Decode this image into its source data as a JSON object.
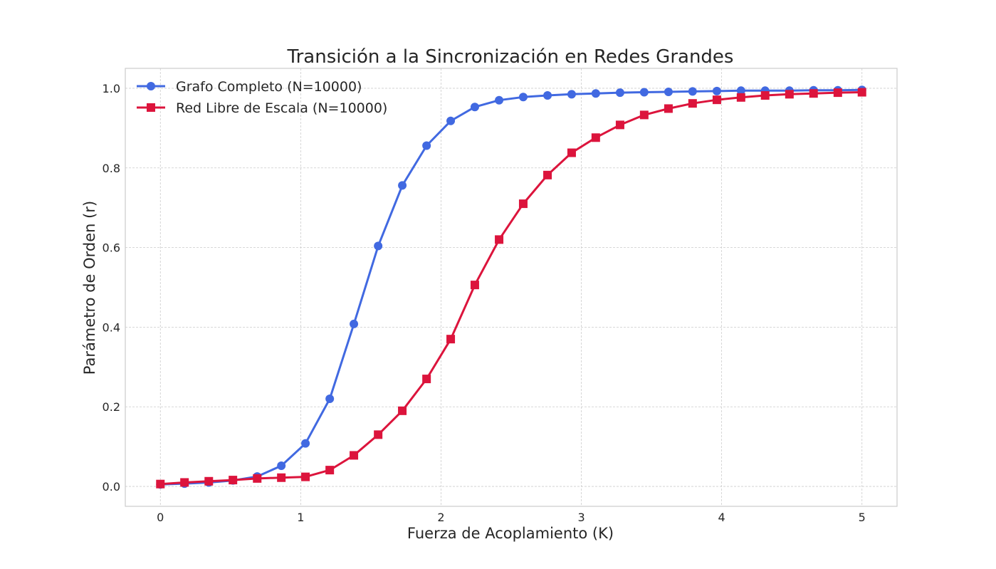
{
  "chart_data": {
    "type": "line",
    "title": "Transición a la Sincronización en Redes Grandes",
    "xlabel": "Fuerza de Acoplamiento (K)",
    "ylabel": "Parámetro de Orden (r)",
    "xlim": [
      -0.25,
      5.25
    ],
    "ylim": [
      -0.05,
      1.05
    ],
    "xticks": [
      0,
      1,
      2,
      3,
      4,
      5
    ],
    "xtick_labels": [
      "0",
      "1",
      "2",
      "3",
      "4",
      "5"
    ],
    "yticks": [
      0.0,
      0.2,
      0.4,
      0.6,
      0.8,
      1.0
    ],
    "ytick_labels": [
      "0.0",
      "0.2",
      "0.4",
      "0.6",
      "0.8",
      "1.0"
    ],
    "grid": true,
    "legend_position": "top-left",
    "x": [
      0.0,
      0.172,
      0.345,
      0.517,
      0.69,
      0.862,
      1.034,
      1.207,
      1.379,
      1.552,
      1.724,
      1.897,
      2.069,
      2.241,
      2.414,
      2.586,
      2.759,
      2.931,
      3.103,
      3.276,
      3.448,
      3.621,
      3.793,
      3.966,
      4.138,
      4.31,
      4.483,
      4.655,
      4.828,
      5.0
    ],
    "series": [
      {
        "name": "Grafo Completo (N=10000)",
        "color": "#4169e1",
        "marker": "circle",
        "values": [
          0.005,
          0.007,
          0.01,
          0.015,
          0.025,
          0.052,
          0.108,
          0.22,
          0.408,
          0.604,
          0.756,
          0.856,
          0.918,
          0.953,
          0.97,
          0.978,
          0.982,
          0.985,
          0.987,
          0.989,
          0.99,
          0.991,
          0.992,
          0.993,
          0.994,
          0.994,
          0.994,
          0.995,
          0.995,
          0.996
        ]
      },
      {
        "name": "Red Libre de Escala (N=10000)",
        "color": "#dc143c",
        "marker": "square",
        "values": [
          0.006,
          0.01,
          0.013,
          0.016,
          0.02,
          0.022,
          0.024,
          0.041,
          0.078,
          0.13,
          0.19,
          0.27,
          0.37,
          0.506,
          0.62,
          0.71,
          0.782,
          0.838,
          0.876,
          0.908,
          0.933,
          0.949,
          0.962,
          0.971,
          0.977,
          0.982,
          0.985,
          0.987,
          0.989,
          0.99
        ]
      }
    ]
  }
}
